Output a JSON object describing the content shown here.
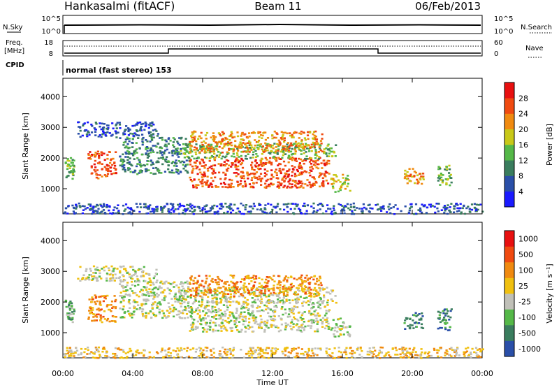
{
  "header": {
    "left": "Hankasalmi (fitACF)",
    "center": "Beam 11",
    "right": "06/Feb/2013"
  },
  "noise_panel": {
    "left_label": "N.Sky",
    "right_label": "N.Search",
    "left_ticks": [
      "10^5",
      "10^0"
    ],
    "right_ticks": [
      "10^5",
      "10^0"
    ]
  },
  "freq_panel": {
    "left_label": "Freq.",
    "left_unit": "[MHz]",
    "right_label": "Nave",
    "left_ticks": [
      "18",
      "8"
    ],
    "right_ticks": [
      "60",
      "0"
    ]
  },
  "cpid": {
    "label": "CPID",
    "text": "normal (fast stereo) 153"
  },
  "x_axis": {
    "label": "Time UT",
    "ticks": [
      "00:00",
      "04:00",
      "08:00",
      "12:00",
      "16:00",
      "20:00",
      "00:00"
    ]
  },
  "colors": {
    "power": [
      "#1a1aff",
      "#2a4fa8",
      "#3a7d5e",
      "#55b848",
      "#c8c818",
      "#f08a10",
      "#f04a10",
      "#e81010"
    ],
    "velocity": [
      "#2a4fa8",
      "#3a7d5e",
      "#55b848",
      "#c0c0b8",
      "#f0c010",
      "#f08a10",
      "#f04a10",
      "#e81010"
    ]
  },
  "chart_data": [
    {
      "type": "heatmap",
      "name": "Power",
      "xlabel": "Time UT",
      "ylabel": "Slant Range [km]",
      "xlim": [
        0,
        24
      ],
      "ylim": [
        180,
        4600
      ],
      "y_ticks": [
        1000,
        2000,
        3000,
        4000
      ],
      "colorbar": {
        "label": "Power [dB]",
        "ticks": [
          "4",
          "8",
          "12",
          "16",
          "20",
          "24",
          "28"
        ],
        "range": [
          0,
          32
        ]
      },
      "regions": [
        {
          "t0": 0.1,
          "t1": 0.6,
          "r0": 1350,
          "r1": 2100,
          "level": 3
        },
        {
          "t0": 1.4,
          "t1": 3.0,
          "r0": 1350,
          "r1": 2250,
          "level": 6
        },
        {
          "t0": 0.8,
          "t1": 5.4,
          "r0": 2700,
          "r1": 3200,
          "level": 1
        },
        {
          "t0": 3.2,
          "t1": 7.2,
          "r0": 1500,
          "r1": 2700,
          "level": 2
        },
        {
          "t0": 7.2,
          "t1": 15.2,
          "r0": 1050,
          "r1": 2050,
          "level": 6
        },
        {
          "t0": 6.6,
          "t1": 15.6,
          "r0": 2000,
          "r1": 2500,
          "level": 3
        },
        {
          "t0": 7.2,
          "t1": 14.8,
          "r0": 2200,
          "r1": 2900,
          "level": 5
        },
        {
          "t0": 15.3,
          "t1": 16.4,
          "r0": 900,
          "r1": 1500,
          "level": 4
        },
        {
          "t0": 19.5,
          "t1": 20.6,
          "r0": 1150,
          "r1": 1700,
          "level": 5
        },
        {
          "t0": 21.4,
          "t1": 22.2,
          "r0": 1100,
          "r1": 1800,
          "level": 3
        },
        {
          "t0": 0.0,
          "t1": 24.0,
          "r0": 200,
          "r1": 550,
          "level": 1
        }
      ]
    },
    {
      "type": "heatmap",
      "name": "Velocity",
      "xlabel": "Time UT",
      "ylabel": "Slant Range [km]",
      "xlim": [
        0,
        24
      ],
      "ylim": [
        180,
        4600
      ],
      "y_ticks": [
        1000,
        2000,
        3000,
        4000
      ],
      "colorbar": {
        "label": "Velocity [m s⁻¹]",
        "ticks": [
          "1000",
          "500",
          "100",
          "25",
          "-25",
          "-100",
          "-500",
          "-1000"
        ]
      },
      "regions": [
        {
          "t0": 0.1,
          "t1": 0.6,
          "r0": 1350,
          "r1": 2100,
          "level": 2
        },
        {
          "t0": 1.4,
          "t1": 3.0,
          "r0": 1350,
          "r1": 2250,
          "level": 5
        },
        {
          "t0": 0.8,
          "t1": 5.4,
          "r0": 2700,
          "r1": 3200,
          "level": 3
        },
        {
          "t0": 3.2,
          "t1": 7.2,
          "r0": 1500,
          "r1": 2700,
          "level": 3
        },
        {
          "t0": 7.2,
          "t1": 15.2,
          "r0": 1050,
          "r1": 2050,
          "level": 3
        },
        {
          "t0": 6.6,
          "t1": 15.6,
          "r0": 2000,
          "r1": 2500,
          "level": 3
        },
        {
          "t0": 7.2,
          "t1": 14.8,
          "r0": 2200,
          "r1": 2900,
          "level": 5
        },
        {
          "t0": 15.3,
          "t1": 16.4,
          "r0": 900,
          "r1": 1500,
          "level": 3
        },
        {
          "t0": 19.5,
          "t1": 20.6,
          "r0": 1150,
          "r1": 1700,
          "level": 1
        },
        {
          "t0": 21.4,
          "t1": 22.2,
          "r0": 1100,
          "r1": 1800,
          "level": 1
        },
        {
          "t0": 0.0,
          "t1": 24.0,
          "r0": 200,
          "r1": 550,
          "level": 4
        }
      ]
    }
  ]
}
